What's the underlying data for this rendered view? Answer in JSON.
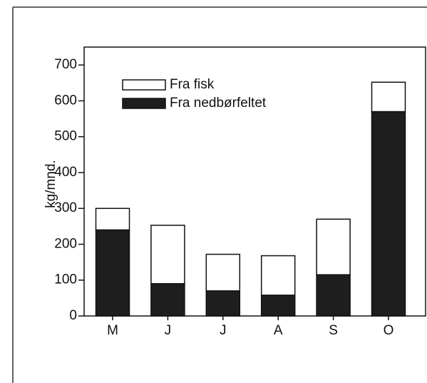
{
  "chart_data": {
    "type": "stacked_bar",
    "categories": [
      "M",
      "J",
      "J",
      "A",
      "S",
      "O"
    ],
    "series": [
      {
        "name": "Fra nedbørfeltet",
        "color": "#1e1e1e",
        "values": [
          240,
          90,
          70,
          58,
          115,
          570
        ]
      },
      {
        "name": "Fra fisk",
        "color": "#ffffff",
        "values": [
          60,
          163,
          102,
          110,
          155,
          82
        ]
      }
    ],
    "y_label": "kg/mnd.",
    "ylim": [
      0,
      750
    ],
    "yticks": [
      0,
      100,
      200,
      300,
      400,
      500,
      600,
      700
    ]
  }
}
